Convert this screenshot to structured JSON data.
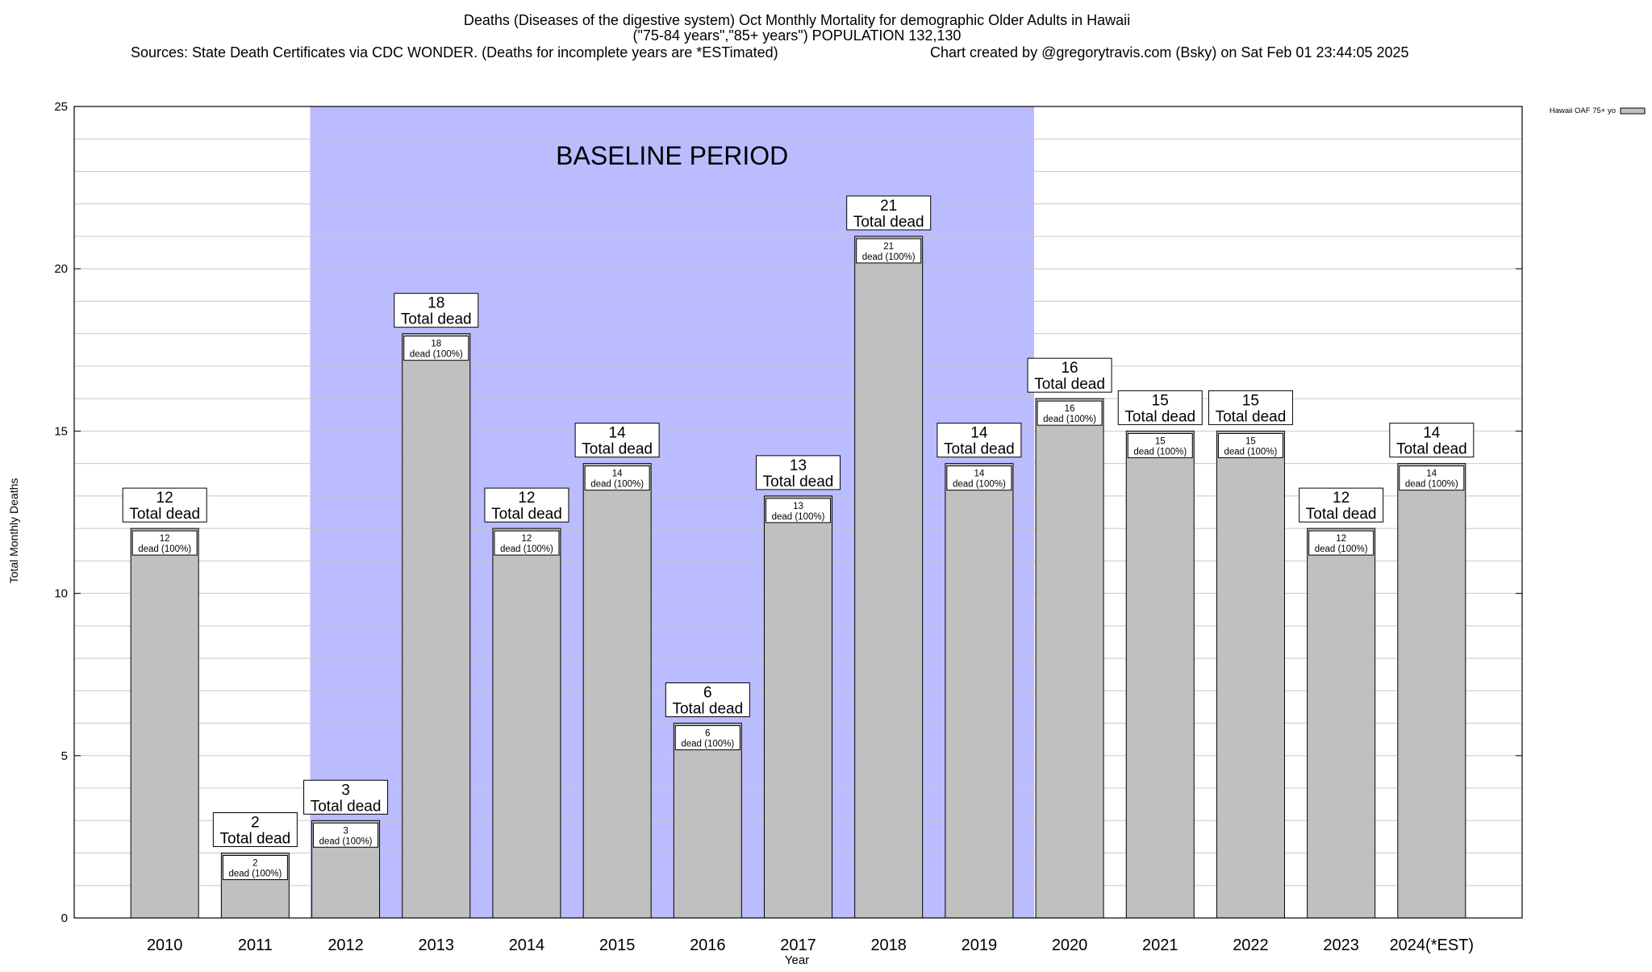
{
  "chart_data": {
    "type": "bar",
    "title_lines": [
      "Deaths (Diseases of the digestive system) Oct Monthly Mortality for demographic Older Adults in Hawaii",
      "(\"75-84 years\",\"85+ years\") POPULATION 132,130"
    ],
    "sources_text": "Sources: State Death Certificates via CDC WONDER. (Deaths for incomplete years are *ESTimated)",
    "credit_text": "Chart created by @gregorytravis.com (Bsky) on Sat Feb 01 23:44:05 2025",
    "xlabel": "Year",
    "ylabel": "Total Monthly Deaths",
    "ylim": [
      0,
      25
    ],
    "yticks": [
      0,
      5,
      10,
      15,
      20,
      25
    ],
    "minor_grid_step": 1,
    "grid": true,
    "categories": [
      "2010",
      "2011",
      "2012",
      "2013",
      "2014",
      "2015",
      "2016",
      "2017",
      "2018",
      "2019",
      "2020",
      "2021",
      "2022",
      "2023",
      "2024(*EST)"
    ],
    "series": [
      {
        "name": "Hawaii OAF 75+ yo",
        "color": "#c0c0c0",
        "values": [
          12,
          2,
          3,
          18,
          12,
          14,
          6,
          13,
          21,
          14,
          16,
          15,
          15,
          12,
          14
        ]
      }
    ],
    "top_label_suffix": "Total dead",
    "inner_label_suffix": "dead (100%)",
    "baseline": {
      "label": "BASELINE PERIOD",
      "start": "2012",
      "end": "2019",
      "color": "#bbbbff"
    },
    "legend_position": "top-right"
  }
}
